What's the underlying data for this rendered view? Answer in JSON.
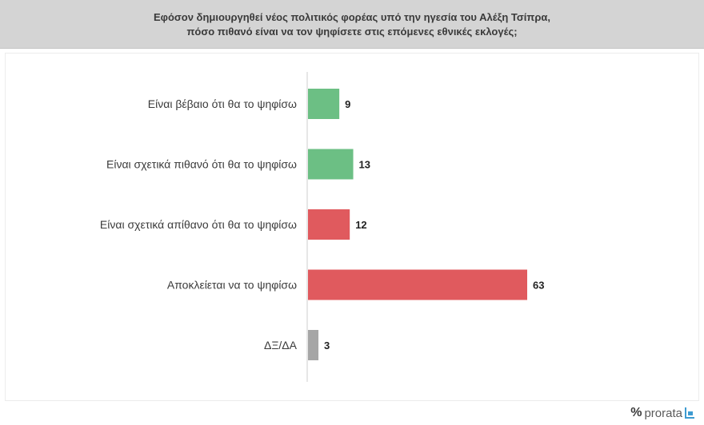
{
  "header": {
    "line1": "Εφόσον δημιουργηθεί νέος πολιτικός φορέας υπό την ηγεσία του Αλέξη Τσίπρα,",
    "line2": "πόσο πιθανό είναι να τον ψηφίσετε στις επόμενες εθνικές εκλογές;"
  },
  "brand": {
    "mark": "%",
    "name": "prorata",
    "icon": "bar-chart-icon",
    "icon_color": "#3d9bd1"
  },
  "chart_data": {
    "type": "bar",
    "orientation": "horizontal",
    "categories": [
      "Είναι βέβαιο ότι θα το ψηφίσω",
      "Είναι σχετικά πιθανό ότι θα το ψηφίσω",
      "Είναι σχετικά απίθανο ότι θα το ψηφίσω",
      "Αποκλείεται να το ψηφίσω",
      "ΔΞ/ΔΑ"
    ],
    "values": [
      9,
      13,
      12,
      63,
      3
    ],
    "value_labels": [
      "9",
      "13",
      "12",
      "63",
      "3"
    ],
    "colors": [
      "#6cbf84",
      "#6cbf84",
      "#e05a5e",
      "#e05a5e",
      "#a6a6a6"
    ],
    "xlim": [
      0,
      63
    ],
    "grid": false,
    "legend": "none"
  }
}
